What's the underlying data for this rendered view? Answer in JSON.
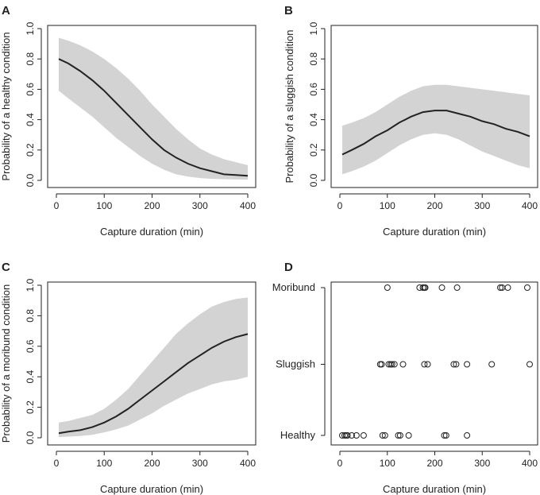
{
  "chart_data": [
    {
      "panel_label": "A",
      "type": "line",
      "xlabel": "Capture duration (min)",
      "ylabel": "Probability of a healthy condition",
      "xlim": [
        0,
        400
      ],
      "ylim": [
        0,
        1
      ],
      "xticks": [
        "0",
        "100",
        "200",
        "300",
        "400"
      ],
      "yticks": [
        "0.0",
        "0.2",
        "0.4",
        "0.6",
        "0.8",
        "1.0"
      ],
      "x": [
        5,
        25,
        50,
        75,
        100,
        125,
        150,
        175,
        200,
        225,
        250,
        275,
        300,
        325,
        350,
        375,
        400
      ],
      "series": [
        {
          "name": "fit",
          "values": [
            0.8,
            0.77,
            0.72,
            0.66,
            0.59,
            0.51,
            0.43,
            0.35,
            0.27,
            0.2,
            0.15,
            0.11,
            0.08,
            0.06,
            0.04,
            0.035,
            0.03
          ]
        },
        {
          "name": "ci_lower",
          "values": [
            0.59,
            0.54,
            0.48,
            0.42,
            0.35,
            0.28,
            0.22,
            0.16,
            0.11,
            0.07,
            0.04,
            0.025,
            0.015,
            0.01,
            0.008,
            0.006,
            0.005
          ]
        },
        {
          "name": "ci_upper",
          "values": [
            0.94,
            0.92,
            0.89,
            0.85,
            0.8,
            0.74,
            0.67,
            0.59,
            0.5,
            0.42,
            0.34,
            0.27,
            0.21,
            0.17,
            0.14,
            0.12,
            0.1
          ]
        }
      ]
    },
    {
      "panel_label": "B",
      "type": "line",
      "xlabel": "Capture duration (min)",
      "ylabel": "Probability of a sluggish condition",
      "xlim": [
        0,
        400
      ],
      "ylim": [
        0,
        1
      ],
      "xticks": [
        "0",
        "100",
        "200",
        "300",
        "400"
      ],
      "yticks": [
        "0.0",
        "0.2",
        "0.4",
        "0.6",
        "0.8",
        "1.0"
      ],
      "x": [
        5,
        25,
        50,
        75,
        100,
        125,
        150,
        175,
        200,
        225,
        250,
        275,
        300,
        325,
        350,
        375,
        400
      ],
      "series": [
        {
          "name": "fit",
          "values": [
            0.17,
            0.2,
            0.24,
            0.29,
            0.33,
            0.38,
            0.42,
            0.45,
            0.46,
            0.46,
            0.44,
            0.42,
            0.39,
            0.37,
            0.34,
            0.32,
            0.29
          ]
        },
        {
          "name": "ci_lower",
          "values": [
            0.04,
            0.06,
            0.09,
            0.13,
            0.18,
            0.23,
            0.27,
            0.3,
            0.31,
            0.3,
            0.27,
            0.23,
            0.19,
            0.16,
            0.13,
            0.1,
            0.08
          ]
        },
        {
          "name": "ci_upper",
          "values": [
            0.36,
            0.38,
            0.41,
            0.45,
            0.5,
            0.55,
            0.59,
            0.62,
            0.63,
            0.63,
            0.62,
            0.61,
            0.6,
            0.59,
            0.58,
            0.57,
            0.56
          ]
        }
      ]
    },
    {
      "panel_label": "C",
      "type": "line",
      "xlabel": "Capture duration (min)",
      "ylabel": "Probability of a moribund condition",
      "xlim": [
        0,
        400
      ],
      "ylim": [
        0,
        1
      ],
      "xticks": [
        "0",
        "100",
        "200",
        "300",
        "400"
      ],
      "yticks": [
        "0.0",
        "0.2",
        "0.4",
        "0.6",
        "0.8",
        "1.0"
      ],
      "x": [
        5,
        25,
        50,
        75,
        100,
        125,
        150,
        175,
        200,
        225,
        250,
        275,
        300,
        325,
        350,
        375,
        400
      ],
      "series": [
        {
          "name": "fit",
          "values": [
            0.03,
            0.04,
            0.05,
            0.07,
            0.1,
            0.14,
            0.19,
            0.25,
            0.31,
            0.37,
            0.43,
            0.49,
            0.54,
            0.59,
            0.63,
            0.66,
            0.68
          ]
        },
        {
          "name": "ci_lower",
          "values": [
            0.005,
            0.008,
            0.012,
            0.02,
            0.035,
            0.055,
            0.08,
            0.12,
            0.16,
            0.21,
            0.25,
            0.29,
            0.32,
            0.35,
            0.37,
            0.38,
            0.4
          ]
        },
        {
          "name": "ci_upper",
          "values": [
            0.1,
            0.11,
            0.13,
            0.15,
            0.19,
            0.25,
            0.32,
            0.41,
            0.5,
            0.59,
            0.68,
            0.75,
            0.81,
            0.86,
            0.89,
            0.91,
            0.92
          ]
        }
      ]
    },
    {
      "panel_label": "D",
      "type": "scatter",
      "xlabel": "Capture duration (min)",
      "ylabel": "",
      "xlim": [
        0,
        400
      ],
      "xticks": [
        "0",
        "100",
        "200",
        "300",
        "400"
      ],
      "categories": [
        "Healthy",
        "Sluggish",
        "Moribund"
      ],
      "points": {
        "Moribund": [
          100,
          168,
          175,
          178,
          180,
          215,
          247,
          338,
          342,
          354,
          395
        ],
        "Sluggish": [
          85,
          88,
          103,
          107,
          110,
          115,
          133,
          178,
          185,
          240,
          245,
          268,
          320,
          400
        ],
        "Healthy": [
          5,
          10,
          13,
          16,
          25,
          35,
          50,
          90,
          95,
          123,
          127,
          145,
          220,
          224,
          268
        ]
      }
    }
  ]
}
